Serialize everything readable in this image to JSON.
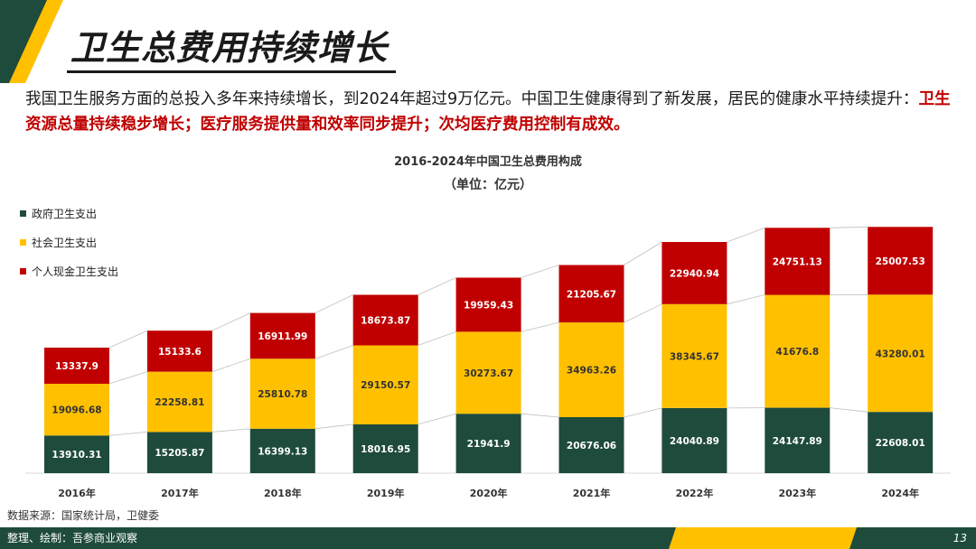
{
  "header": {
    "title": "卫生总费用持续增长"
  },
  "intro": {
    "plain": "我国卫生服务方面的总投入多年来持续增长，到2024年超过9万亿元。中国卫生健康得到了新发展，居民的健康水平持续提升：",
    "highlight": "卫生资源总量持续稳步增长；医疗服务提供量和效率同步提升；次均医疗费用控制有成效。"
  },
  "colors": {
    "government": "#1e4b3c",
    "social": "#ffc000",
    "personal": "#c00000",
    "dark_green": "#1e4b3c",
    "brand_yellow": "#ffc000"
  },
  "chart_data": {
    "type": "bar",
    "stacked": true,
    "title": "2016-2024年中国卫生总费用构成",
    "subtitle": "（单位：亿元）",
    "categories": [
      "2016年",
      "2017年",
      "2018年",
      "2019年",
      "2020年",
      "2021年",
      "2022年",
      "2023年",
      "2024年"
    ],
    "series": [
      {
        "name": "政府卫生支出",
        "values": [
          13910.31,
          15205.87,
          16399.13,
          18016.95,
          21941.9,
          20676.06,
          24040.89,
          24147.89,
          22608.01
        ]
      },
      {
        "name": "社会卫生支出",
        "values": [
          19096.68,
          22258.81,
          25810.78,
          29150.57,
          30273.67,
          34963.26,
          38345.67,
          41676.8,
          43280.01
        ]
      },
      {
        "name": "个人现金卫生支出",
        "values": [
          13337.9,
          15133.6,
          16911.99,
          18673.87,
          19959.43,
          21205.67,
          22940.94,
          24751.13,
          25007.53
        ]
      }
    ],
    "labels": [
      [
        "13910.31",
        "15205.87",
        "16399.13",
        "18016.95",
        "21941.9",
        "20676.06",
        "24040.89",
        "24147.89",
        "22608.01"
      ],
      [
        "19096.68",
        "22258.81",
        "25810.78",
        "29150.57",
        "30273.67",
        "34963.26",
        "38345.67",
        "41676.8",
        "43280.01"
      ],
      [
        "13337.9",
        "15133.6",
        "16911.99",
        "18673.87",
        "19959.43",
        "21205.67",
        "22940.94",
        "24751.13",
        "25007.53"
      ]
    ],
    "ylim": [
      0,
      100000
    ],
    "legend_position": "top-left",
    "grid": false
  },
  "footer": {
    "source": "数据来源：国家统计局，卫健委",
    "credit": "整理、绘制：吾参商业观察",
    "page": "13"
  }
}
